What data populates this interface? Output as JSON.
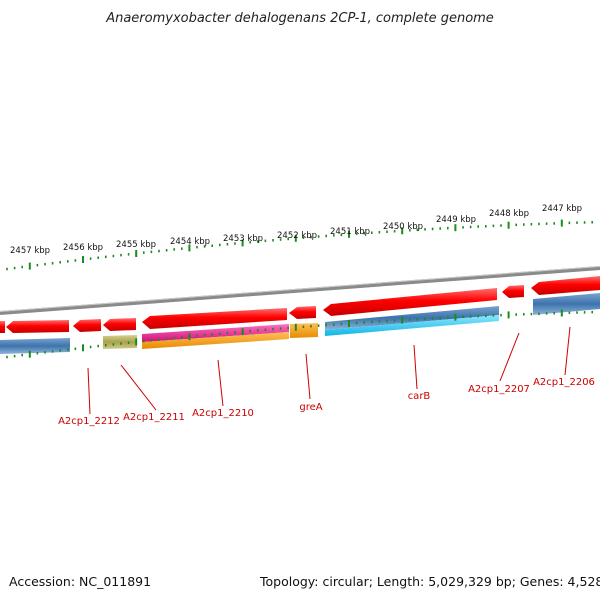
{
  "title": "Anaeromyxobacter dehalogenans 2CP-1, complete genome",
  "footer": {
    "accession": "Accession: NC_011891",
    "summary": "Topology: circular; Length: 5,029,329 bp; Genes: 4,528"
  },
  "colors": {
    "cds_red": "#ff0000",
    "cds_blue": "#4a7fb5",
    "cds_olive": "#b3ad5c",
    "cds_magenta": "#e8228c",
    "cds_orange": "#f79a05",
    "cds_cyan": "#19c3ef",
    "backbone": "#777777",
    "ticks_green": "#1a8c1a",
    "label_red": "#cc0000"
  },
  "kbp_labels": [
    "2457 kbp",
    "2456 kbp",
    "2455 kbp",
    "2454 kbp",
    "2453 kbp",
    "2452 kbp",
    "2451 kbp",
    "2450 kbp",
    "2449 kbp",
    "2448 kbp",
    "2447 kbp"
  ],
  "genes": [
    {
      "label": "A2cp1_2212"
    },
    {
      "label": "A2cp1_2211"
    },
    {
      "label": "A2cp1_2210"
    },
    {
      "label": "greA"
    },
    {
      "label": "carB"
    },
    {
      "label": "A2cp1_2207"
    },
    {
      "label": "A2cp1_2206"
    }
  ]
}
